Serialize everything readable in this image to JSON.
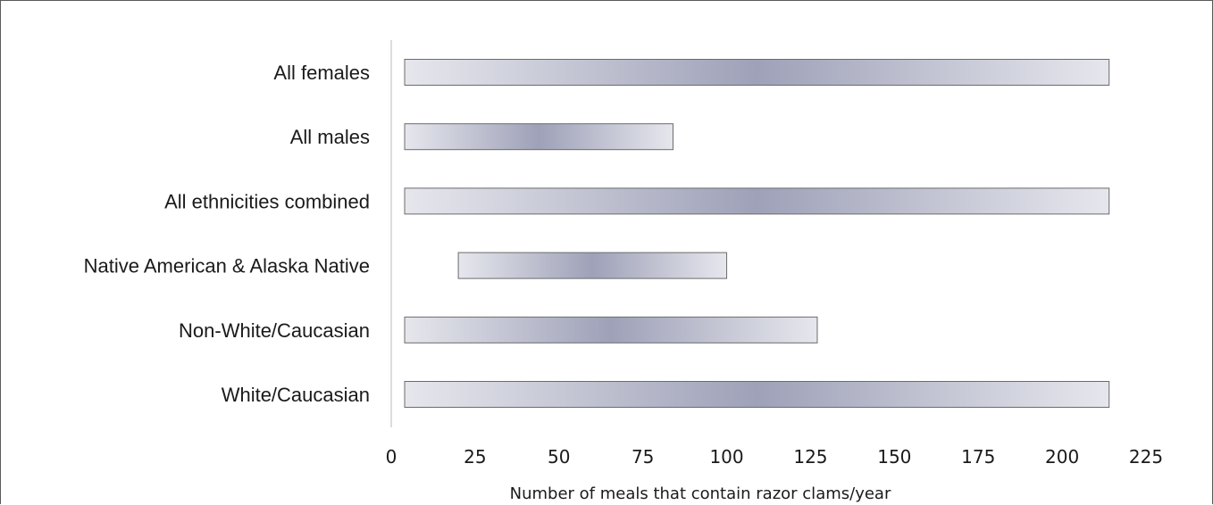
{
  "chart_data": {
    "type": "bar",
    "orientation": "horizontal",
    "floating": true,
    "categories": [
      "All females",
      "All males",
      "All ethnicities combined",
      "Native American & Alaska Native",
      "Non-White/Caucasian",
      "White/Caucasian"
    ],
    "ranges": [
      [
        4,
        214
      ],
      [
        4,
        84
      ],
      [
        4,
        214
      ],
      [
        20,
        100
      ],
      [
        4,
        127
      ],
      [
        4,
        214
      ]
    ],
    "xlabel": "Number of meals that contain razor clams/year",
    "ylabel": "",
    "xlim": [
      0,
      225
    ],
    "xticks": [
      "0",
      "25",
      "50",
      "75",
      "100",
      "125",
      "150",
      "175",
      "200",
      "225"
    ],
    "grid": false,
    "legend": "none",
    "colors": {
      "bar_light": "#e6e7ed",
      "bar_dark": "#9ea1b8",
      "bar_stroke": "#6b6b6b",
      "axis_line": "#d0d0d0"
    }
  }
}
